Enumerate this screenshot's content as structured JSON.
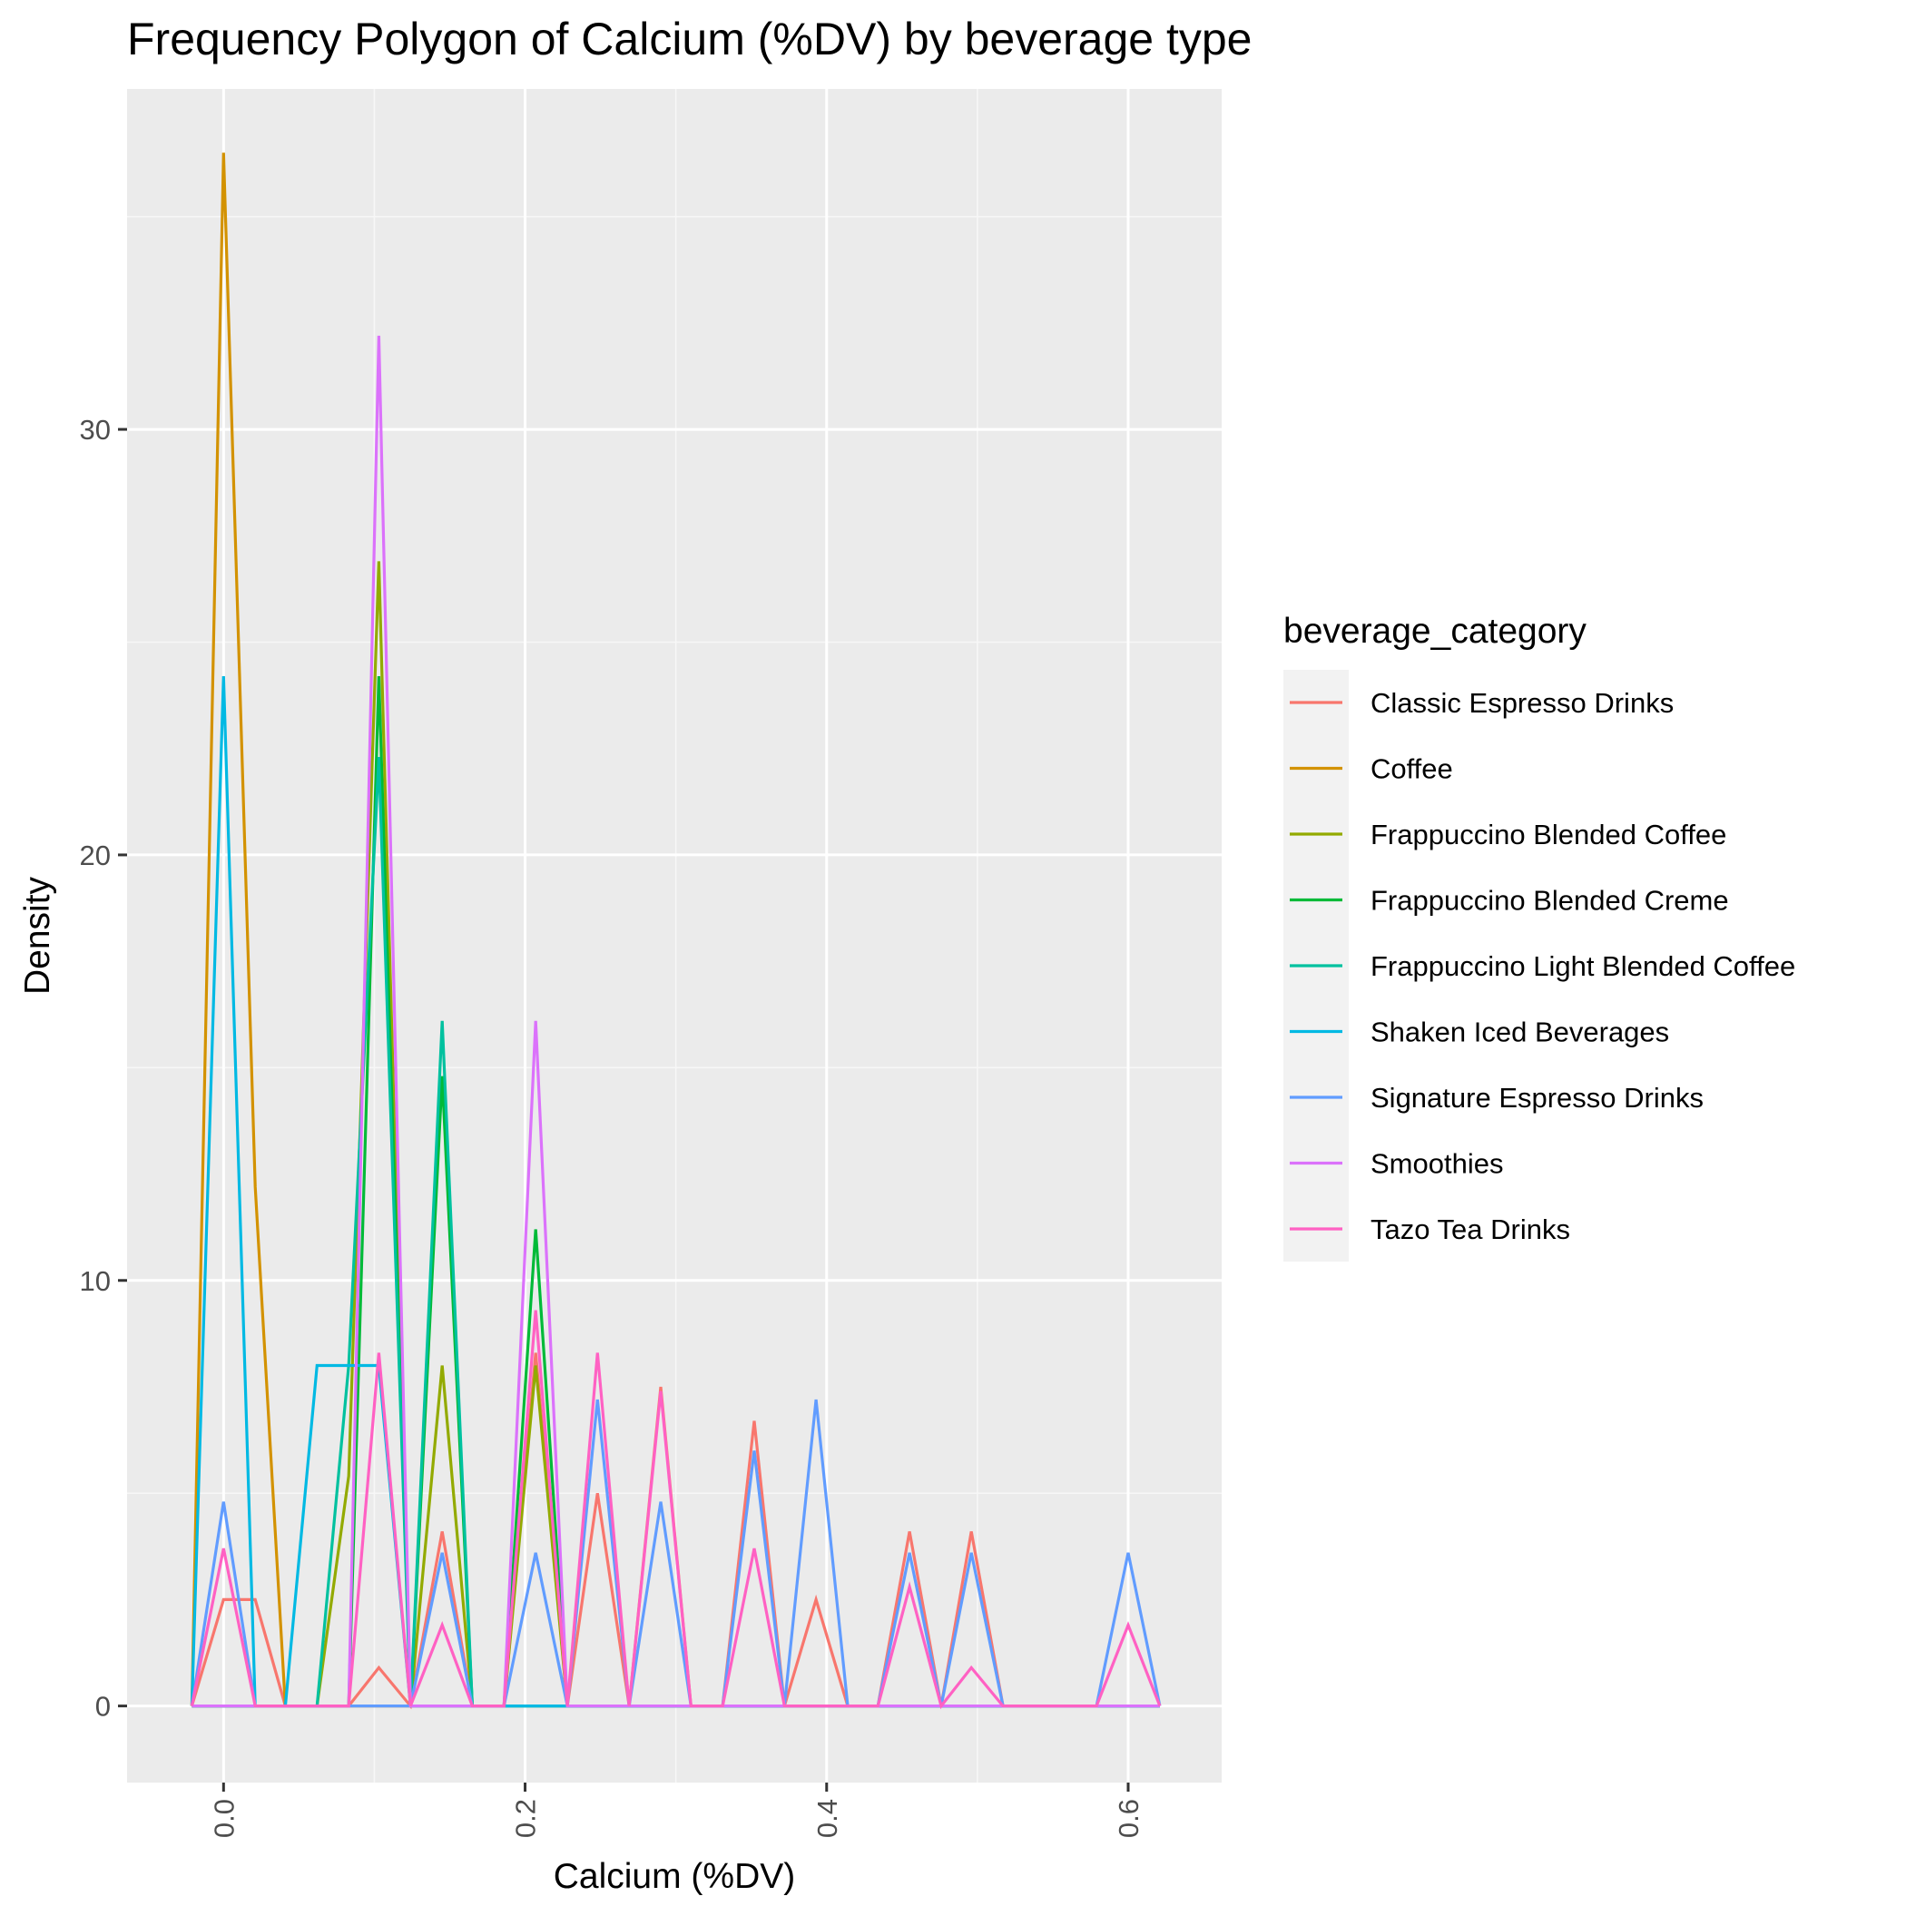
{
  "chart_data": {
    "type": "line",
    "title": "Frequency Polygon of Calcium (%DV) by beverage type",
    "xlabel": "Calcium (%DV)",
    "ylabel": "Density",
    "xlim": [
      -0.064,
      0.662
    ],
    "ylim": [
      -1.8,
      38.0
    ],
    "x_ticks": [
      0.0,
      0.2,
      0.4,
      0.6
    ],
    "x_tick_labels": [
      "0.0",
      "0.2",
      "0.4",
      "0.6"
    ],
    "y_ticks": [
      0,
      10,
      20,
      30
    ],
    "y_tick_labels": [
      "0",
      "10",
      "20",
      "30"
    ],
    "grid": true,
    "legend": {
      "title": "beverage_category",
      "position": "right"
    },
    "x": [
      -0.021,
      0.0,
      0.021,
      0.041,
      0.062,
      0.083,
      0.103,
      0.124,
      0.145,
      0.165,
      0.186,
      0.207,
      0.228,
      0.248,
      0.269,
      0.29,
      0.31,
      0.331,
      0.352,
      0.372,
      0.393,
      0.414,
      0.434,
      0.455,
      0.476,
      0.496,
      0.517,
      0.538,
      0.559,
      0.579,
      0.6,
      0.621
    ],
    "series": [
      {
        "name": "Classic Espresso Drinks",
        "color": "#F8766D",
        "values": [
          0,
          2.5,
          2.5,
          0,
          0,
          0,
          0.9,
          0,
          4.1,
          0,
          0,
          8.3,
          0,
          5.0,
          0,
          7.5,
          0,
          0,
          6.7,
          0,
          2.5,
          0,
          0,
          4.1,
          0,
          4.1,
          0,
          0,
          0,
          0,
          0,
          0
        ]
      },
      {
        "name": "Coffee",
        "color": "#D39200",
        "values": [
          0,
          36.5,
          12.2,
          0,
          0,
          0,
          0,
          0,
          0,
          0,
          0,
          0,
          0,
          0,
          0,
          0,
          0,
          0,
          0,
          0,
          0,
          0,
          0,
          0,
          0,
          0,
          0,
          0,
          0,
          0,
          0,
          0
        ]
      },
      {
        "name": "Frappuccino Blended Coffee",
        "color": "#93AA00",
        "values": [
          0,
          0,
          0,
          0,
          0,
          5.4,
          26.9,
          0,
          8.0,
          0,
          0,
          8.0,
          0,
          0,
          0,
          0,
          0,
          0,
          0,
          0,
          0,
          0,
          0,
          0,
          0,
          0,
          0,
          0,
          0,
          0,
          0,
          0
        ]
      },
      {
        "name": "Frappuccino Blended Creme",
        "color": "#00BA38",
        "values": [
          0,
          0,
          0,
          0,
          0,
          0,
          24.2,
          0,
          14.8,
          0,
          0,
          11.2,
          0,
          0,
          0,
          0,
          0,
          0,
          0,
          0,
          0,
          0,
          0,
          0,
          0,
          0,
          0,
          0,
          0,
          0,
          0,
          0
        ]
      },
      {
        "name": "Frappuccino Light Blended Coffee",
        "color": "#00C19F",
        "values": [
          0,
          0,
          0,
          0,
          0,
          8.0,
          22.3,
          0,
          16.1,
          0,
          0,
          0,
          0,
          0,
          0,
          0,
          0,
          0,
          0,
          0,
          0,
          0,
          0,
          0,
          0,
          0,
          0,
          0,
          0,
          0,
          0,
          0
        ]
      },
      {
        "name": "Shaken Iced Beverages",
        "color": "#00B9E3",
        "values": [
          0,
          24.2,
          0,
          0,
          8.0,
          8.0,
          8.0,
          0,
          0,
          0,
          0,
          0,
          0,
          0,
          0,
          0,
          0,
          0,
          0,
          0,
          0,
          0,
          0,
          0,
          0,
          0,
          0,
          0,
          0,
          0,
          0,
          0
        ]
      },
      {
        "name": "Signature Espresso Drinks",
        "color": "#619CFF",
        "values": [
          0,
          4.8,
          0,
          0,
          0,
          0,
          0,
          0,
          3.6,
          0,
          0,
          3.6,
          0,
          7.2,
          0,
          4.8,
          0,
          0,
          6.0,
          0,
          7.2,
          0,
          0,
          3.6,
          0,
          3.6,
          0,
          0,
          0,
          0,
          3.6,
          0
        ]
      },
      {
        "name": "Smoothies",
        "color": "#DB72FB",
        "values": [
          0,
          0,
          0,
          0,
          0,
          0,
          32.2,
          0,
          0,
          0,
          0,
          16.1,
          0,
          0,
          0,
          0,
          0,
          0,
          0,
          0,
          0,
          0,
          0,
          0,
          0,
          0,
          0,
          0,
          0,
          0,
          0,
          0
        ]
      },
      {
        "name": "Tazo Tea Drinks",
        "color": "#FF61C3",
        "values": [
          0,
          3.7,
          0,
          0,
          0,
          0,
          8.3,
          0,
          1.9,
          0,
          0,
          9.3,
          0,
          8.3,
          0,
          7.4,
          0,
          0,
          3.7,
          0,
          0,
          0,
          0,
          2.8,
          0,
          0.9,
          0,
          0,
          0,
          0,
          1.9,
          0
        ]
      }
    ]
  }
}
